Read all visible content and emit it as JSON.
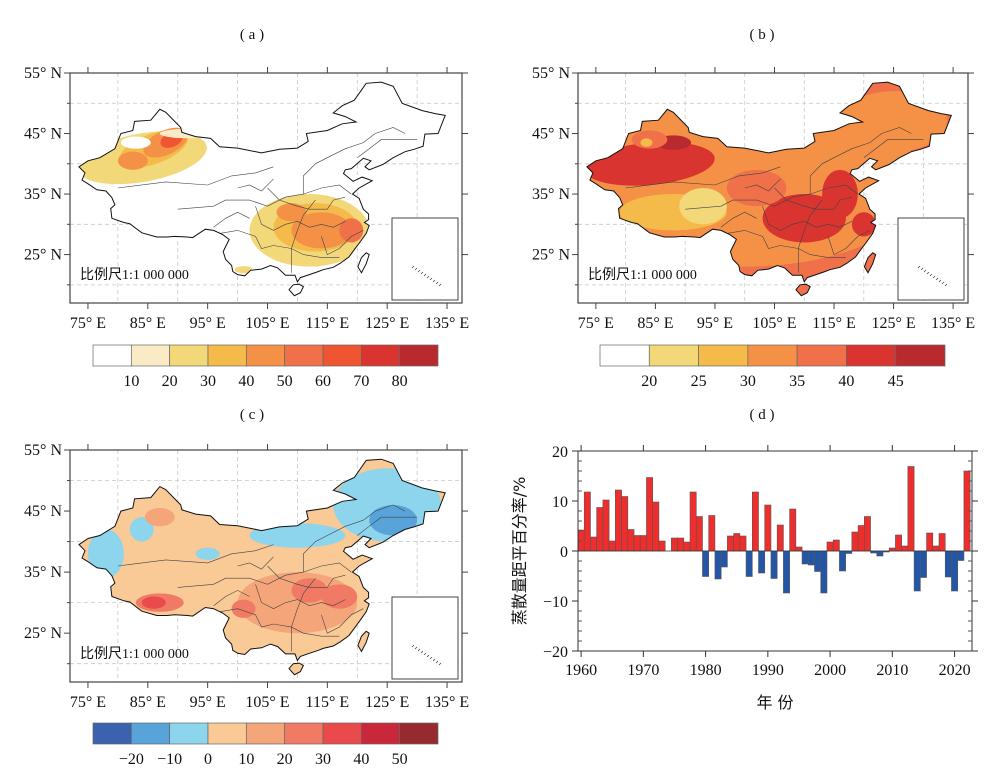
{
  "panels": {
    "a": {
      "label": "( a )"
    },
    "b": {
      "label": "( b )"
    },
    "c": {
      "label": "( c )"
    },
    "d": {
      "label": "( d )"
    }
  },
  "map_axes": {
    "lat_ticks": [
      "55° N",
      "45° N",
      "35° N",
      "25° N"
    ],
    "lon_ticks": [
      "75° E",
      "85° E",
      "95° E",
      "105° E",
      "115° E",
      "125° E",
      "135° E"
    ],
    "scale_label": "比例尺1:1 000 000"
  },
  "colorbars": {
    "a": {
      "colors": [
        "#ffffff",
        "#faebc6",
        "#f3d87a",
        "#f4bb4a",
        "#f49147",
        "#f07049",
        "#ef5530",
        "#d93430",
        "#b92a2f"
      ],
      "labels": [
        "10",
        "20",
        "30",
        "40",
        "50",
        "60",
        "70",
        "80"
      ]
    },
    "b": {
      "colors": [
        "#ffffff",
        "#f3d87a",
        "#f4bb4a",
        "#f49147",
        "#f07049",
        "#d93430",
        "#b92a2f"
      ],
      "labels": [
        "20",
        "25",
        "30",
        "35",
        "40",
        "45"
      ]
    },
    "c": {
      "colors": [
        "#3a62ae",
        "#58a3da",
        "#8dd5ec",
        "#f9c996",
        "#f5a57a",
        "#f07a64",
        "#ea4a4b",
        "#c9273a",
        "#972a2e"
      ],
      "labels": [
        "−20",
        "−10",
        "0",
        "10",
        "20",
        "30",
        "40",
        "50"
      ]
    }
  },
  "chart_data": {
    "type": "bar",
    "title": "( d )",
    "xlabel": "年 份",
    "ylabel": "蒸散量距平百分率/%",
    "ylim": [
      -20,
      20
    ],
    "xlim": [
      1959.5,
      2022.8
    ],
    "y_ticks": [
      "20",
      "10",
      "0",
      "−10",
      "−20"
    ],
    "x_ticks": [
      "1960",
      "1970",
      "1980",
      "1990",
      "2000",
      "2010",
      "2020"
    ],
    "positive_color": "#ee2d2d",
    "negative_color": "#2456a8",
    "x": [
      1960,
      1961,
      1962,
      1963,
      1964,
      1965,
      1966,
      1967,
      1968,
      1969,
      1970,
      1971,
      1972,
      1973,
      1974,
      1975,
      1976,
      1977,
      1978,
      1979,
      1980,
      1981,
      1982,
      1983,
      1984,
      1985,
      1986,
      1987,
      1988,
      1989,
      1990,
      1991,
      1992,
      1993,
      1994,
      1995,
      1996,
      1997,
      1998,
      1999,
      2000,
      2001,
      2002,
      2003,
      2004,
      2005,
      2006,
      2007,
      2008,
      2009,
      2010,
      2011,
      2012,
      2013,
      2014,
      2015,
      2016,
      2017,
      2018,
      2019,
      2020,
      2021,
      2022
    ],
    "values": [
      4.2,
      11.8,
      2.8,
      8.7,
      10.2,
      2.0,
      12.2,
      10.9,
      4.3,
      3.1,
      3.1,
      14.7,
      9.8,
      2.0,
      0,
      2.6,
      2.6,
      1.8,
      11.8,
      6.9,
      -5.1,
      7.1,
      -5.6,
      -3.2,
      3.0,
      3.5,
      3.0,
      -5.1,
      11.8,
      -4.4,
      9.2,
      -5.5,
      5.2,
      -8.4,
      8.4,
      0.8,
      -2.6,
      -2.8,
      -4.1,
      -8.4,
      1.8,
      2.2,
      -4.0,
      -0.5,
      3.8,
      5.1,
      6.9,
      -0.4,
      -1.0,
      -0.2,
      0.6,
      3.2,
      1.0,
      16.9,
      -8.0,
      -5.3,
      3.6,
      1.0,
      3.5,
      -5.2,
      -8.0,
      -1.9,
      16.0
    ]
  }
}
